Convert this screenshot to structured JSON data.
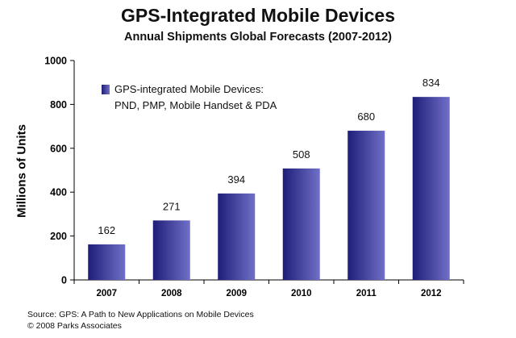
{
  "chart_data": {
    "type": "bar",
    "title": "GPS-Integrated Mobile Devices",
    "subtitle": "Annual Shipments Global Forecasts (2007-2012)",
    "xlabel": "",
    "ylabel": "Millions of Units",
    "categories": [
      "2007",
      "2008",
      "2009",
      "2010",
      "2011",
      "2012"
    ],
    "series": [
      {
        "name": "GPS-integrated Mobile Devices: PND, PMP, Mobile Handset & PDA",
        "values": [
          162,
          271,
          394,
          508,
          680,
          834
        ]
      }
    ],
    "data_labels": [
      "162",
      "271",
      "394",
      "508",
      "680",
      "834"
    ],
    "ylim": [
      0,
      1000
    ],
    "yticks": [
      0,
      200,
      400,
      600,
      800,
      1000
    ],
    "grid": false,
    "legend_position": "top-left",
    "legend_lines": [
      "GPS-integrated Mobile Devices:",
      "PND, PMP, Mobile Handset & PDA"
    ],
    "colors": {
      "bar_dark": "#1e1e78",
      "bar_light": "#7070c8",
      "axis": "#000000"
    }
  },
  "source": {
    "line1": "Source:  GPS: A Path to New Applications on Mobile Devices",
    "line2": "© 2008 Parks Associates"
  }
}
